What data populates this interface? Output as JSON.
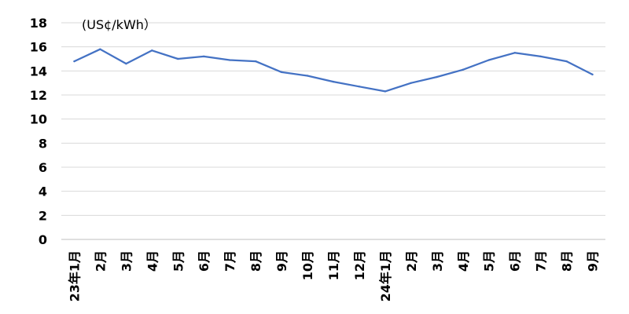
{
  "chart_data": {
    "type": "line",
    "title": "",
    "unit_label": "(US¢/kWh）",
    "xlabel": "",
    "ylabel": "",
    "ylim": [
      0,
      18
    ],
    "yticks": [
      0,
      2,
      4,
      6,
      8,
      10,
      12,
      14,
      16,
      18
    ],
    "grid": true,
    "categories": [
      "23年1月",
      "2月",
      "3月",
      "4月",
      "5月",
      "6月",
      "7月",
      "8月",
      "9月",
      "10月",
      "11月",
      "12月",
      "24年1月",
      "2月",
      "3月",
      "4月",
      "5月",
      "6月",
      "7月",
      "8月",
      "9月"
    ],
    "series": [
      {
        "name": "",
        "color": "#4472C4",
        "values": [
          14.8,
          15.8,
          14.6,
          15.7,
          15.0,
          15.2,
          14.9,
          14.8,
          13.9,
          13.6,
          13.1,
          12.7,
          12.3,
          13.0,
          13.5,
          14.1,
          14.9,
          15.5,
          15.2,
          14.8,
          13.7
        ]
      }
    ]
  }
}
